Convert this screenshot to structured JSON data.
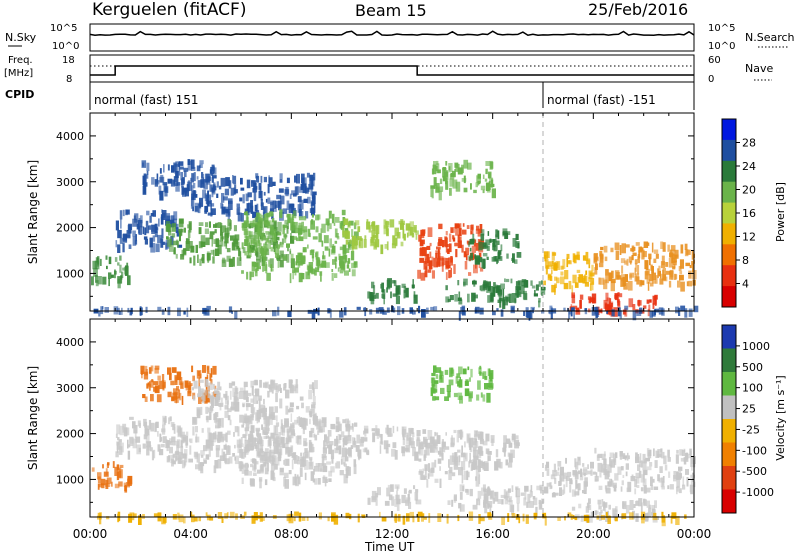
{
  "header": {
    "title": "Kerguelen (fitACF)",
    "beam": "Beam 15",
    "date": "25/Feb/2016"
  },
  "status_panels": {
    "nsky_label": "N.Sky",
    "nsky_ticks": [
      "10^5",
      "10^0"
    ],
    "nsearch_label": "N.Search",
    "freq_label_1": "Freq.",
    "freq_label_2": "[MHz]",
    "freq_ticks": [
      "18",
      "8"
    ],
    "nave_label": "Nave",
    "nave_ticks": [
      "60",
      "0"
    ],
    "cpid_label": "CPID",
    "cpid_segments": [
      {
        "label": "normal (fast) 151",
        "start_hour": 0
      },
      {
        "label": "normal (fast) -151",
        "start_hour": 18
      }
    ],
    "freq_steps": [
      {
        "hour": 0,
        "level": 0
      },
      {
        "hour": 1,
        "level": 1
      },
      {
        "hour": 13,
        "level": 0
      }
    ]
  },
  "chart_data": [
    {
      "type": "heatmap",
      "name": "Power",
      "ylabel": "Slant Range [km]",
      "xlabel": "Time UT",
      "yticks": [
        "4000",
        "3000",
        "2000",
        "1000"
      ],
      "ylim": [
        180,
        4500
      ],
      "xlim": [
        0,
        24
      ],
      "colorbar_label": "Power [dB]",
      "colorbar_ticks": [
        "28",
        "24",
        "20",
        "16",
        "12",
        "8",
        "4"
      ],
      "colorbar_colors": [
        "#0018e0",
        "#1f4fa0",
        "#2a7a3a",
        "#6ab34a",
        "#b8d23a",
        "#f0b000",
        "#f07000",
        "#e83010",
        "#d80000"
      ],
      "regions": [
        {
          "t0": 0.0,
          "t1": 1.5,
          "r0": 850,
          "r1": 1400,
          "color": "#3a8a3a"
        },
        {
          "t0": 1.0,
          "t1": 3.5,
          "r0": 1600,
          "r1": 2400,
          "color": "#1f4fa0"
        },
        {
          "t0": 2.0,
          "t1": 5.0,
          "r0": 2800,
          "r1": 3500,
          "color": "#1f4fa0"
        },
        {
          "t0": 3.0,
          "t1": 8.0,
          "r0": 1300,
          "r1": 2200,
          "color": "#4f9a3a"
        },
        {
          "t0": 4.0,
          "t1": 9.0,
          "r0": 2300,
          "r1": 3200,
          "color": "#1f4fa0"
        },
        {
          "t0": 6.0,
          "t1": 10.5,
          "r0": 1000,
          "r1": 2400,
          "color": "#6ab34a"
        },
        {
          "t0": 10.0,
          "t1": 13.0,
          "r0": 1600,
          "r1": 2200,
          "color": "#9ec840"
        },
        {
          "t0": 11.0,
          "t1": 13.0,
          "r0": 500,
          "r1": 900,
          "color": "#2a7a3a"
        },
        {
          "t0": 13.0,
          "t1": 15.5,
          "r0": 1000,
          "r1": 2100,
          "color": "#e84010"
        },
        {
          "t0": 15.0,
          "t1": 17.0,
          "r0": 1300,
          "r1": 2000,
          "color": "#2a7a3a"
        },
        {
          "t0": 13.5,
          "t1": 16.0,
          "r0": 2800,
          "r1": 3500,
          "color": "#6ab34a"
        },
        {
          "t0": 14.0,
          "t1": 18.0,
          "r0": 400,
          "r1": 900,
          "color": "#2a7a3a"
        },
        {
          "t0": 18.0,
          "t1": 20.0,
          "r0": 700,
          "r1": 1500,
          "color": "#f0b000"
        },
        {
          "t0": 19.0,
          "t1": 22.5,
          "r0": 200,
          "r1": 600,
          "color": "#e83010"
        },
        {
          "t0": 20.0,
          "t1": 24.0,
          "r0": 800,
          "r1": 1700,
          "color": "#e89020"
        },
        {
          "t0": 0.0,
          "t1": 24.0,
          "r0": 180,
          "r1": 300,
          "color": "#1f4fa0"
        }
      ]
    },
    {
      "type": "heatmap",
      "name": "Velocity",
      "ylabel": "Slant Range [km]",
      "xlabel": "Time UT",
      "yticks": [
        "4000",
        "3000",
        "2000",
        "1000"
      ],
      "ylim": [
        180,
        4500
      ],
      "xlim": [
        0,
        24
      ],
      "colorbar_label": "Velocity [m s⁻¹]",
      "colorbar_ticks": [
        "1000",
        "500",
        "100",
        "25",
        "-25",
        "-100",
        "-500",
        "-1000"
      ],
      "colorbar_colors": [
        "#1c3ab0",
        "#2f7a3a",
        "#5fb840",
        "#c0c0c0",
        "#f0b000",
        "#f08000",
        "#e04010",
        "#d80000"
      ],
      "regions": [
        {
          "t0": 0.0,
          "t1": 1.5,
          "r0": 850,
          "r1": 1400,
          "color": "#e87010"
        },
        {
          "t0": 1.0,
          "t1": 3.5,
          "r0": 1600,
          "r1": 2400,
          "color": "#c8c8c8"
        },
        {
          "t0": 2.0,
          "t1": 5.0,
          "r0": 2800,
          "r1": 3500,
          "color": "#e87010"
        },
        {
          "t0": 3.0,
          "t1": 8.0,
          "r0": 1300,
          "r1": 2200,
          "color": "#c8c8c8"
        },
        {
          "t0": 4.0,
          "t1": 9.0,
          "r0": 2300,
          "r1": 3200,
          "color": "#c8c8c8"
        },
        {
          "t0": 6.0,
          "t1": 10.5,
          "r0": 1000,
          "r1": 2400,
          "color": "#c8c8c8"
        },
        {
          "t0": 10.0,
          "t1": 13.0,
          "r0": 1600,
          "r1": 2200,
          "color": "#c8c8c8"
        },
        {
          "t0": 11.0,
          "t1": 13.0,
          "r0": 500,
          "r1": 900,
          "color": "#c8c8c8"
        },
        {
          "t0": 13.0,
          "t1": 15.5,
          "r0": 1000,
          "r1": 2100,
          "color": "#c8c8c8"
        },
        {
          "t0": 15.0,
          "t1": 17.0,
          "r0": 1300,
          "r1": 2000,
          "color": "#c8c8c8"
        },
        {
          "t0": 13.5,
          "t1": 16.0,
          "r0": 2800,
          "r1": 3500,
          "color": "#5fb840"
        },
        {
          "t0": 14.0,
          "t1": 18.0,
          "r0": 400,
          "r1": 900,
          "color": "#c8c8c8"
        },
        {
          "t0": 18.0,
          "t1": 20.0,
          "r0": 700,
          "r1": 1500,
          "color": "#c8c8c8"
        },
        {
          "t0": 19.0,
          "t1": 22.5,
          "r0": 200,
          "r1": 600,
          "color": "#c8c8c8"
        },
        {
          "t0": 20.0,
          "t1": 24.0,
          "r0": 800,
          "r1": 1700,
          "color": "#c8c8c8"
        },
        {
          "t0": 0.0,
          "t1": 24.0,
          "r0": 180,
          "r1": 300,
          "color": "#f0b000"
        }
      ]
    }
  ],
  "time_axis": {
    "ticks": [
      "00:00",
      "04:00",
      "08:00",
      "12:00",
      "16:00",
      "20:00",
      "00:00"
    ],
    "hours": [
      0,
      4,
      8,
      12,
      16,
      20,
      24
    ],
    "label": "Time UT"
  },
  "colors": {
    "axes": "#000000",
    "dashed": "#b0b0b0"
  }
}
